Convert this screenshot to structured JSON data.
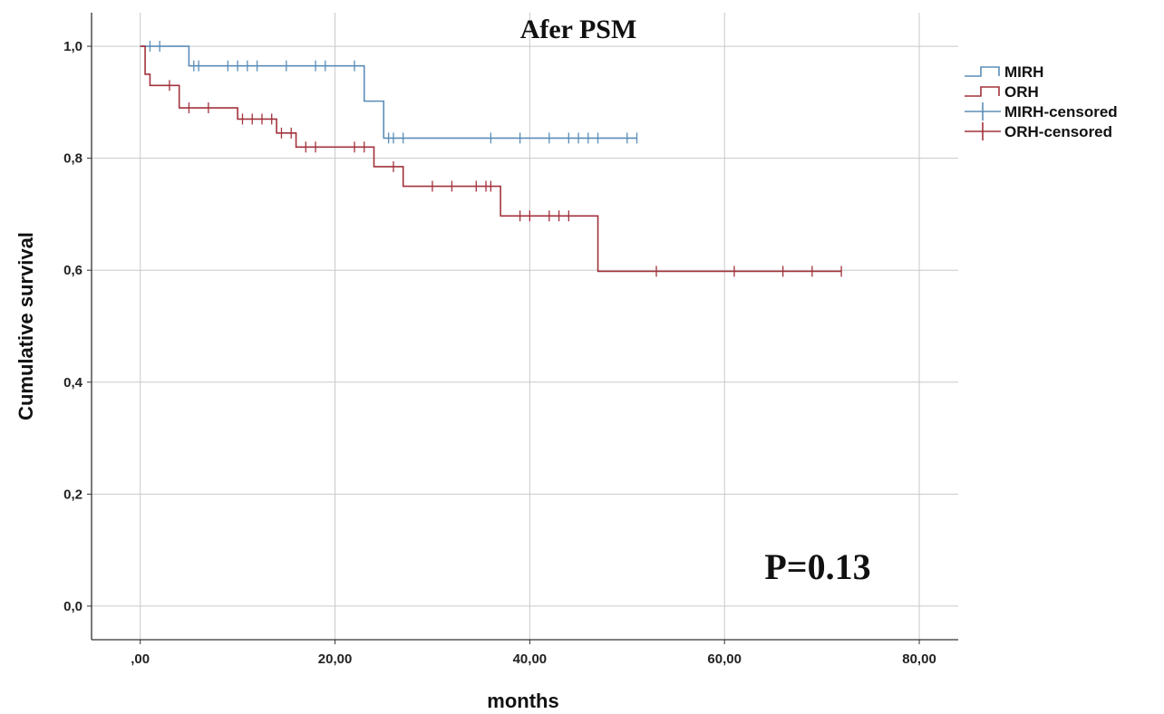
{
  "chart_data": {
    "type": "line",
    "subtype": "kaplan-meier",
    "title": "Afer PSM",
    "annotation": "P=0.13",
    "xlabel": "months",
    "ylabel": "Cumulative survival",
    "xlim": [
      -5,
      84
    ],
    "ylim": [
      -0.06,
      1.06
    ],
    "x_ticks": [
      0,
      20,
      40,
      60,
      80
    ],
    "x_tick_labels": [
      ",00",
      "20,00",
      "40,00",
      "60,00",
      "80,00"
    ],
    "y_ticks": [
      0,
      0.2,
      0.4,
      0.6,
      0.8,
      1.0
    ],
    "y_tick_labels": [
      "0,0",
      "0,2",
      "0,4",
      "0,6",
      "0,8",
      "1,0"
    ],
    "grid": true,
    "legend_position": "right",
    "legend": [
      "MIRH",
      "ORH",
      "MIRH-censored",
      "ORH-censored"
    ],
    "series": [
      {
        "name": "MIRH",
        "color": "#5b8db8",
        "steps": [
          [
            0,
            1.0
          ],
          [
            5,
            0.965
          ],
          [
            23,
            0.902
          ],
          [
            25,
            0.836
          ],
          [
            51,
            0.836
          ]
        ],
        "censored": [
          [
            1,
            1.0
          ],
          [
            2,
            1.0
          ],
          [
            5.5,
            0.965
          ],
          [
            6,
            0.965
          ],
          [
            9,
            0.965
          ],
          [
            10,
            0.965
          ],
          [
            11,
            0.965
          ],
          [
            12,
            0.965
          ],
          [
            15,
            0.965
          ],
          [
            18,
            0.965
          ],
          [
            19,
            0.965
          ],
          [
            22,
            0.965
          ],
          [
            25.5,
            0.836
          ],
          [
            26,
            0.836
          ],
          [
            27,
            0.836
          ],
          [
            36,
            0.836
          ],
          [
            39,
            0.836
          ],
          [
            42,
            0.836
          ],
          [
            44,
            0.836
          ],
          [
            45,
            0.836
          ],
          [
            46,
            0.836
          ],
          [
            47,
            0.836
          ],
          [
            50,
            0.836
          ],
          [
            51,
            0.836
          ]
        ]
      },
      {
        "name": "ORH",
        "color": "#a2323c",
        "steps": [
          [
            0,
            1.0
          ],
          [
            0.5,
            0.95
          ],
          [
            1,
            0.93
          ],
          [
            4,
            0.89
          ],
          [
            10,
            0.87
          ],
          [
            14,
            0.845
          ],
          [
            16,
            0.82
          ],
          [
            24,
            0.785
          ],
          [
            27,
            0.75
          ],
          [
            37,
            0.697
          ],
          [
            47,
            0.598
          ],
          [
            72,
            0.598
          ]
        ],
        "censored": [
          [
            3,
            0.93
          ],
          [
            5,
            0.89
          ],
          [
            7,
            0.89
          ],
          [
            10.5,
            0.87
          ],
          [
            11.5,
            0.87
          ],
          [
            12.5,
            0.87
          ],
          [
            13.5,
            0.87
          ],
          [
            14.5,
            0.845
          ],
          [
            15.5,
            0.845
          ],
          [
            17,
            0.82
          ],
          [
            18,
            0.82
          ],
          [
            22,
            0.82
          ],
          [
            23,
            0.82
          ],
          [
            26,
            0.785
          ],
          [
            30,
            0.75
          ],
          [
            32,
            0.75
          ],
          [
            34.5,
            0.75
          ],
          [
            35.5,
            0.75
          ],
          [
            36,
            0.75
          ],
          [
            39,
            0.697
          ],
          [
            40,
            0.697
          ],
          [
            42,
            0.697
          ],
          [
            43,
            0.697
          ],
          [
            44,
            0.697
          ],
          [
            53,
            0.598
          ],
          [
            61,
            0.598
          ],
          [
            66,
            0.598
          ],
          [
            69,
            0.598
          ],
          [
            72,
            0.598
          ]
        ]
      }
    ]
  }
}
